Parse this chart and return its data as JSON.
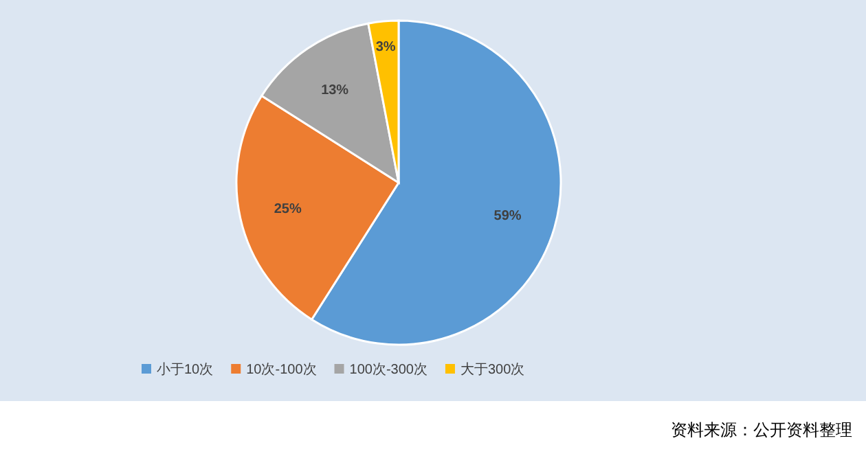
{
  "chart_data": {
    "type": "pie",
    "categories": [
      "小于10次",
      "10次-100次",
      "100次-300次",
      "大于300次"
    ],
    "values": [
      59,
      25,
      13,
      3
    ],
    "colors": [
      "#5b9bd5",
      "#ed7d31",
      "#a5a5a5",
      "#ffc000"
    ],
    "value_labels": [
      "59%",
      "25%",
      "13%",
      "3%"
    ],
    "legend": "bottom",
    "annotations": [
      "资料来源：公开资料整理"
    ]
  }
}
